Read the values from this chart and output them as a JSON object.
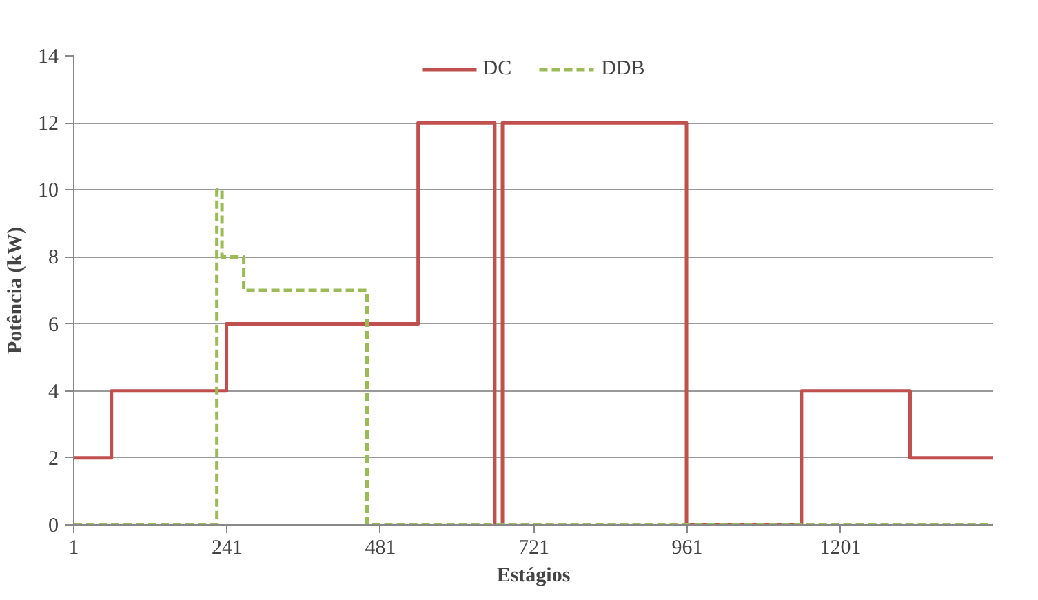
{
  "chart_data": {
    "type": "step",
    "xlabel": "Estágios",
    "ylabel": "Potência (kW)",
    "xlim": [
      1,
      1440
    ],
    "xticks": [
      1,
      241,
      481,
      721,
      961,
      1201
    ],
    "ylim": [
      0,
      14
    ],
    "yticks": [
      0,
      2,
      4,
      6,
      8,
      10,
      12,
      14
    ],
    "grid": "y",
    "legend": "top",
    "marker": "none",
    "series": [
      {
        "name": "DC",
        "color": "#c0504d",
        "line_style": "solid",
        "x": [
          1,
          60,
          240,
          540,
          660,
          672,
          960,
          1140,
          1310,
          1440
        ],
        "values": [
          2,
          4,
          6,
          12,
          0,
          12,
          0,
          4,
          2,
          2
        ]
      },
      {
        "name": "DDB",
        "color": "#9bbb59",
        "line_style": "dashed",
        "x": [
          1,
          225,
          233,
          267,
          460,
          1440
        ],
        "values": [
          0,
          10,
          8,
          7,
          0,
          0
        ]
      }
    ]
  }
}
